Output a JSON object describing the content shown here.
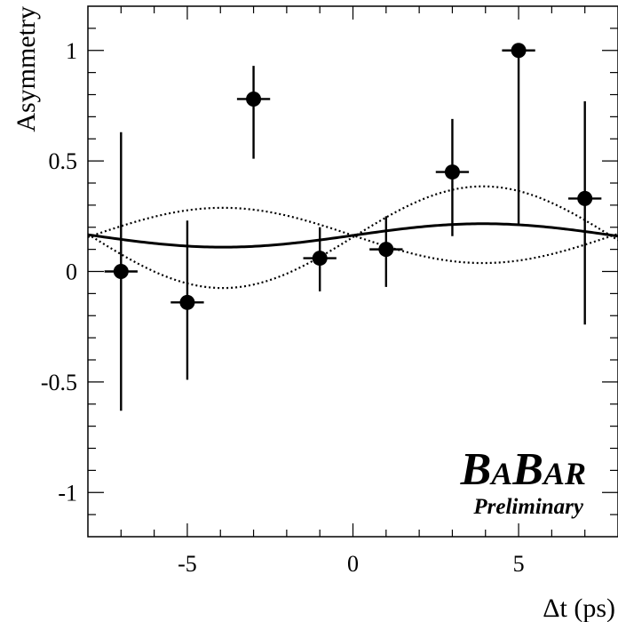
{
  "chart_data": {
    "type": "scatter",
    "title": "",
    "xlabel": "Δt (ps)",
    "ylabel": "Asymmetry",
    "xlim": [
      -8,
      8
    ],
    "ylim": [
      -1.2,
      1.2
    ],
    "grid": false,
    "x_ticks": [
      -5,
      0,
      5
    ],
    "x_tick_labels": [
      "-5",
      "0",
      "5"
    ],
    "y_ticks": [
      -1,
      -0.5,
      0,
      0.5,
      1
    ],
    "y_tick_labels": [
      "-1",
      "-0.5",
      "0",
      "0.5",
      "1"
    ],
    "series": [
      {
        "type": "errorbar",
        "points": [
          {
            "x": -7,
            "y": 0.0,
            "xerr": 0.5,
            "yerr_low": 0.63,
            "yerr_high": 0.63
          },
          {
            "x": -5,
            "y": -0.14,
            "xerr": 0.5,
            "yerr_low": 0.35,
            "yerr_high": 0.37
          },
          {
            "x": -3,
            "y": 0.78,
            "xerr": 0.5,
            "yerr_low": 0.27,
            "yerr_high": 0.15
          },
          {
            "x": -1,
            "y": 0.06,
            "xerr": 0.5,
            "yerr_low": 0.15,
            "yerr_high": 0.14
          },
          {
            "x": 1,
            "y": 0.1,
            "xerr": 0.5,
            "yerr_low": 0.17,
            "yerr_high": 0.15
          },
          {
            "x": 3,
            "y": 0.45,
            "xerr": 0.5,
            "yerr_low": 0.29,
            "yerr_high": 0.24
          },
          {
            "x": 5,
            "y": 1.0,
            "xerr": 0.5,
            "yerr_low": 0.79,
            "yerr_high": 0.0
          },
          {
            "x": 7,
            "y": 0.33,
            "xerr": 0.5,
            "yerr_low": 0.57,
            "yerr_high": 0.44
          }
        ]
      },
      {
        "type": "curve",
        "style": "solid",
        "function": "offset + amplitude * sin(omega * x)",
        "offset": 0.163,
        "amplitude": 0.053,
        "omega": 0.4
      },
      {
        "type": "curve",
        "style": "dotted",
        "function": "offset + amplitude * sin(omega * x)",
        "offset": 0.155,
        "amplitude": 0.23,
        "omega": 0.4
      },
      {
        "type": "curve",
        "style": "dotted",
        "function": "offset + amplitude * sin(omega * x)",
        "offset": 0.163,
        "amplitude": -0.125,
        "omega": 0.4
      }
    ],
    "annotations": {
      "logo_letters": [
        "B",
        "A",
        "B",
        "AR"
      ],
      "logo_subtitle": "Preliminary",
      "logo_placement": "bottom-right"
    }
  }
}
